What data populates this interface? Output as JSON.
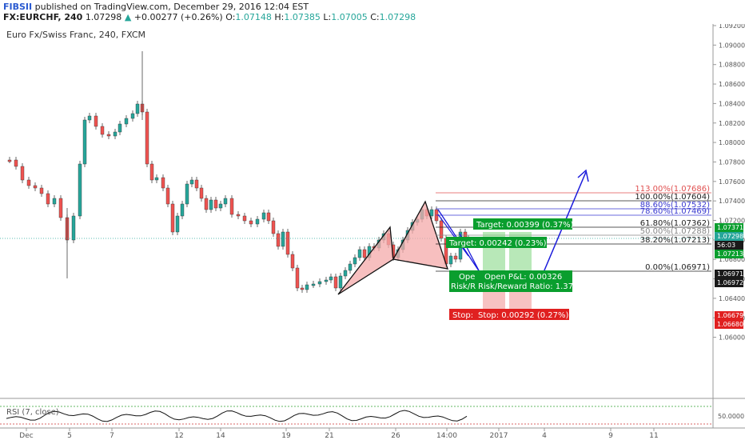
{
  "header": {
    "brand": "FIBSII",
    "published": "published on TradingView.com, December 29, 2016 12:04 EST",
    "symbol": "FX:EURCHF, 240",
    "last": "1.07298",
    "change": "+0.00277 (+0.26%)",
    "o_label": "O:",
    "o_value": "1.07148",
    "h_label": "H:",
    "h_value": "1.07385",
    "l_label": "L:",
    "l_value": "1.07005",
    "c_label": "C:",
    "c_value": "1.07298"
  },
  "chart_title": "Euro Fx/Swiss Franc, 240, FXCM",
  "colors": {
    "up": "#26a69a",
    "down": "#ef5350",
    "target_green": "#0a9e2e",
    "stop_red": "#e02020",
    "pattern_fill": "#f4a9a9",
    "blue": "#1a1adb"
  },
  "price_axis": [
    "1.09200",
    "1.09000",
    "1.08800",
    "1.08600",
    "1.08400",
    "1.08200",
    "1.08000",
    "1.07800",
    "1.07600",
    "1.07400",
    "1.07200",
    "1.07000",
    "1.06800",
    "1.06600",
    "1.06400",
    "1.06200",
    "1.06000"
  ],
  "price_tags": [
    {
      "text": "1.07371",
      "color": "#0a9e2e"
    },
    {
      "text": "1.07298",
      "color": "#26a69a"
    },
    {
      "text": "56:03",
      "color": "#1a1a1a"
    },
    {
      "text": "1.07213",
      "color": "#0a9e2e"
    },
    {
      "text": "1.06971",
      "color": "#1a1a1a"
    },
    {
      "text": "1.06972",
      "color": "#1a1a1a"
    },
    {
      "text": "1.06679",
      "color": "#e02020"
    },
    {
      "text": "1.06680",
      "color": "#e02020"
    }
  ],
  "date_axis": [
    "Dec",
    "5",
    "7",
    "12",
    "14",
    "19",
    "21",
    "26",
    "14:00",
    "2017",
    "4",
    "9",
    "11"
  ],
  "fib_levels": [
    {
      "label": "113.00%(1.07686)",
      "color": "#e05050"
    },
    {
      "label": "100.00%(1.07604)",
      "color": "#222222"
    },
    {
      "label": "88.60%(1.07532)",
      "color": "#3a3ad0"
    },
    {
      "label": "78.60%(1.07469)",
      "color": "#3a3ad0"
    },
    {
      "label": "61.80%(1.07362)",
      "color": "#222222"
    },
    {
      "label": "50.00%(1.07288)",
      "color": "#888888"
    },
    {
      "label": "38.20%(1.07213)",
      "color": "#222222"
    },
    {
      "label": "0.00%(1.06971)",
      "color": "#222222"
    }
  ],
  "boxes": {
    "target_1": "Target: 0.00399 (0.37%)",
    "target_2": "Target: 0.00242 (0.23%)",
    "open_short": "Ope",
    "rr_short": "Risk/R",
    "open_pl": "Open P&L: 0.00326",
    "rr": "Risk/Reward Ratio: 1.37",
    "stop_1": "Stop:",
    "stop_2": "Stop: 0.00292 (0.27%)"
  },
  "rsi": {
    "label": "RSI (7, close)",
    "tag": "50.0000"
  }
}
